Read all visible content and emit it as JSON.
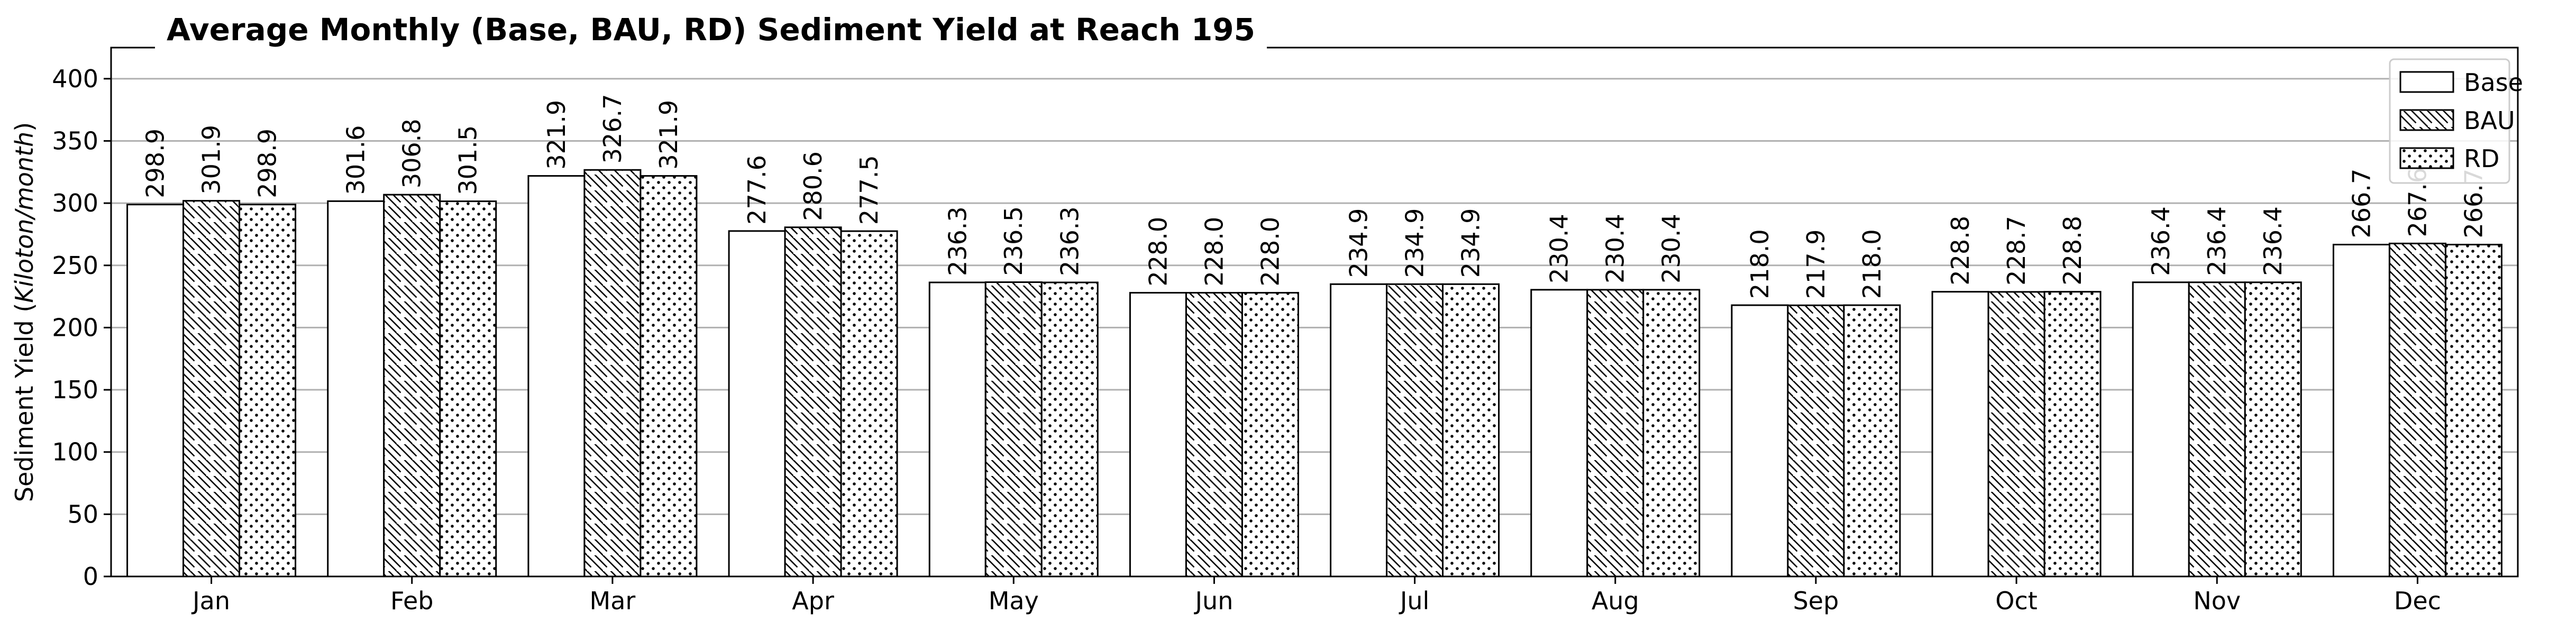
{
  "chart_data": {
    "type": "bar",
    "title": "Average Monthly (Base, BAU, RD) Sediment Yield at Reach 195",
    "xlabel": "",
    "ylabel_prefix": "Sediment Yield (",
    "ylabel_italic": "Kiloton/month",
    "ylabel_suffix": ")",
    "categories": [
      "Jan",
      "Feb",
      "Mar",
      "Apr",
      "May",
      "Jun",
      "Jul",
      "Aug",
      "Sep",
      "Oct",
      "Nov",
      "Dec"
    ],
    "series": [
      {
        "name": "Base",
        "pattern": "none",
        "values": [
          298.9,
          301.6,
          321.9,
          277.6,
          236.3,
          228.0,
          234.9,
          230.4,
          218.0,
          228.8,
          236.4,
          266.7
        ]
      },
      {
        "name": "BAU",
        "pattern": "diagonal-hatch",
        "values": [
          301.9,
          306.8,
          326.7,
          280.6,
          236.5,
          228.0,
          234.9,
          230.4,
          217.9,
          228.7,
          236.4,
          267.6
        ]
      },
      {
        "name": "RD",
        "pattern": "dots",
        "values": [
          298.9,
          301.5,
          321.9,
          277.5,
          236.3,
          228.0,
          234.9,
          230.4,
          218.0,
          228.8,
          236.4,
          266.7
        ]
      }
    ],
    "ylim": [
      0,
      425
    ],
    "yticks": [
      0,
      50,
      100,
      150,
      200,
      250,
      300,
      350,
      400
    ],
    "grid": "y",
    "legend_position": "top-right",
    "bar_fill": "#ffffff",
    "bar_edge": "#000000",
    "grid_color": "#b0b0b0"
  }
}
